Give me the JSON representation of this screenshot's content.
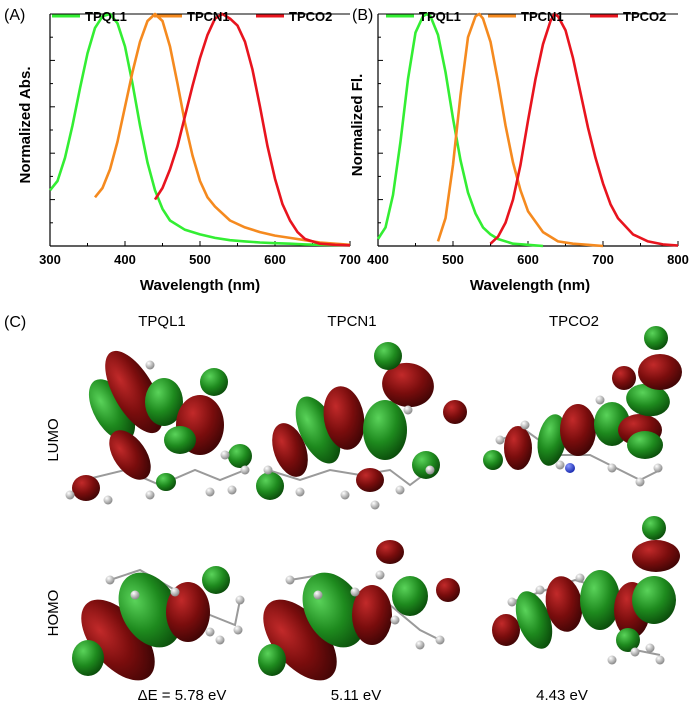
{
  "chart_data": [
    {
      "panel": "(A)",
      "type": "line",
      "xlabel": "Wavelength (nm)",
      "ylabel": "Normalized Abs.",
      "xlim": [
        300,
        700
      ],
      "ylim": [
        0,
        1.0
      ],
      "xticks": [
        "300",
        "400",
        "500",
        "600",
        "700"
      ],
      "legend_position": "top",
      "series": [
        {
          "name": "TPQL1",
          "color": "#33ee33",
          "x": [
            300,
            310,
            320,
            330,
            340,
            350,
            360,
            370,
            380,
            390,
            400,
            410,
            420,
            430,
            440,
            450,
            460,
            480,
            500,
            520,
            540,
            560,
            580,
            600,
            620,
            640,
            660,
            680,
            700
          ],
          "y": [
            0.24,
            0.28,
            0.38,
            0.52,
            0.68,
            0.83,
            0.94,
            0.99,
            1.0,
            0.96,
            0.86,
            0.7,
            0.52,
            0.36,
            0.24,
            0.16,
            0.11,
            0.07,
            0.05,
            0.035,
            0.025,
            0.02,
            0.015,
            0.012,
            0.01,
            0.007,
            0.005,
            0.004,
            0.003
          ]
        },
        {
          "name": "TPCN1",
          "color": "#f58a1f",
          "x": [
            360,
            370,
            380,
            390,
            400,
            410,
            420,
            430,
            440,
            450,
            460,
            470,
            480,
            490,
            500,
            510,
            520,
            540,
            560,
            580,
            600,
            620,
            640,
            660,
            680,
            700
          ],
          "y": [
            0.21,
            0.25,
            0.33,
            0.45,
            0.6,
            0.75,
            0.88,
            0.97,
            1.0,
            0.97,
            0.86,
            0.7,
            0.53,
            0.39,
            0.28,
            0.21,
            0.17,
            0.11,
            0.08,
            0.06,
            0.045,
            0.035,
            0.025,
            0.015,
            0.01,
            0.005
          ]
        },
        {
          "name": "TPCO2",
          "color": "#e8141e",
          "x": [
            440,
            450,
            460,
            470,
            480,
            490,
            500,
            510,
            520,
            530,
            540,
            550,
            560,
            570,
            580,
            590,
            600,
            610,
            620,
            630,
            640,
            660,
            680,
            700
          ],
          "y": [
            0.2,
            0.25,
            0.33,
            0.43,
            0.56,
            0.69,
            0.81,
            0.91,
            0.98,
            1.0,
            0.98,
            0.95,
            0.88,
            0.76,
            0.6,
            0.43,
            0.29,
            0.18,
            0.11,
            0.06,
            0.03,
            0.01,
            0.005,
            0.003
          ]
        }
      ]
    },
    {
      "panel": "(B)",
      "type": "line",
      "xlabel": "Wavelength (nm)",
      "ylabel": "Normalized Fl.",
      "xlim": [
        400,
        800
      ],
      "ylim": [
        0,
        1.0
      ],
      "xticks": [
        "400",
        "500",
        "600",
        "700",
        "800"
      ],
      "legend_position": "top",
      "series": [
        {
          "name": "TPQL1",
          "color": "#33ee33",
          "x": [
            400,
            410,
            420,
            430,
            440,
            450,
            460,
            465,
            470,
            480,
            490,
            500,
            510,
            520,
            530,
            540,
            550,
            560,
            580,
            600,
            620
          ],
          "y": [
            0.03,
            0.08,
            0.22,
            0.45,
            0.72,
            0.92,
            0.99,
            1.0,
            0.99,
            0.91,
            0.75,
            0.55,
            0.37,
            0.23,
            0.14,
            0.08,
            0.05,
            0.03,
            0.01,
            0.005,
            0.0
          ]
        },
        {
          "name": "TPCN1",
          "color": "#f58a1f",
          "x": [
            480,
            490,
            500,
            510,
            520,
            530,
            535,
            540,
            550,
            560,
            570,
            580,
            590,
            600,
            620,
            640,
            660,
            680,
            700
          ],
          "y": [
            0.02,
            0.12,
            0.35,
            0.65,
            0.9,
            0.99,
            1.0,
            0.98,
            0.88,
            0.71,
            0.52,
            0.36,
            0.24,
            0.15,
            0.06,
            0.02,
            0.01,
            0.005,
            0.0
          ]
        },
        {
          "name": "TPCO2",
          "color": "#e8141e",
          "x": [
            550,
            560,
            570,
            580,
            590,
            600,
            610,
            620,
            630,
            635,
            640,
            650,
            660,
            670,
            680,
            690,
            700,
            710,
            720,
            740,
            760,
            780,
            800
          ],
          "y": [
            0.01,
            0.04,
            0.1,
            0.2,
            0.35,
            0.54,
            0.72,
            0.87,
            0.97,
            1.0,
            0.99,
            0.93,
            0.81,
            0.66,
            0.51,
            0.38,
            0.27,
            0.18,
            0.12,
            0.05,
            0.02,
            0.007,
            0.002
          ]
        }
      ]
    }
  ],
  "panels": {
    "a": "(A)",
    "b": "(B)",
    "c": "(C)"
  },
  "orbitals": {
    "columns": [
      "TPQL1",
      "TPCN1",
      "TPCO2"
    ],
    "rows": [
      "LUMO",
      "HOMO"
    ],
    "gaps": [
      "ΔE = 5.78 eV",
      "5.11 eV",
      "4.43 eV"
    ]
  },
  "colors": {
    "lobe_red": "#7a0d0d",
    "lobe_green": "#1e8a1e",
    "atom_grey": "#a8a8a8",
    "atom_white": "#e8e8e8",
    "nitrogen_blue": "#2b3fd6"
  }
}
